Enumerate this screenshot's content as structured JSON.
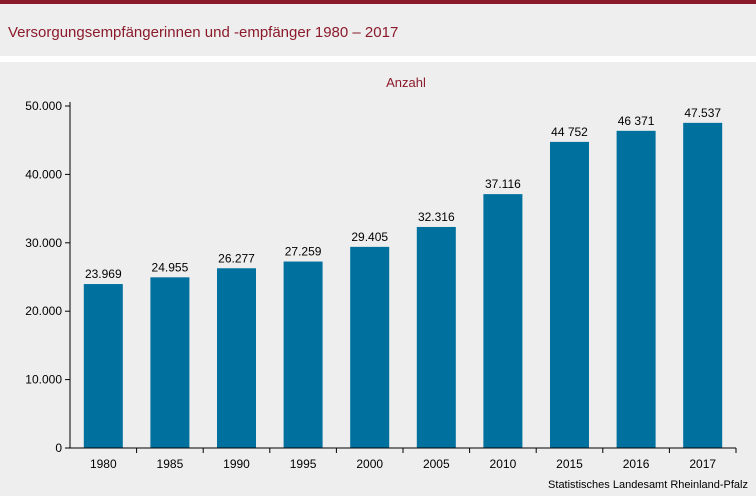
{
  "header": {
    "title": "Versorgungsempfängerinnen und -empfänger 1980 – 2017"
  },
  "colors": {
    "accent": "#8b1a2b",
    "bar": "#00709e",
    "background": "#eeeeee"
  },
  "chart_data": {
    "type": "bar",
    "unit_label": "Anzahl",
    "categories": [
      "1980",
      "1985",
      "1990",
      "1995",
      "2000",
      "2005",
      "2010",
      "2015",
      "2016",
      "2017"
    ],
    "values": [
      23969,
      24955,
      26277,
      27259,
      29405,
      32316,
      37116,
      44752,
      46371,
      47537
    ],
    "data_labels": [
      "23.969",
      "24.955",
      "26.277",
      "27.259",
      "29.405",
      "32.316",
      "37.116",
      "44 752",
      "46 371",
      "47.537"
    ],
    "ylim": [
      0,
      50000
    ],
    "yticks": [
      0,
      10000,
      20000,
      30000,
      40000,
      50000
    ],
    "ytick_labels": [
      "0",
      "10.000",
      "20.000",
      "30.000",
      "40.000",
      "50.000"
    ],
    "grid": false,
    "source": "Statistisches Landesamt Rheinland-Pfalz"
  }
}
